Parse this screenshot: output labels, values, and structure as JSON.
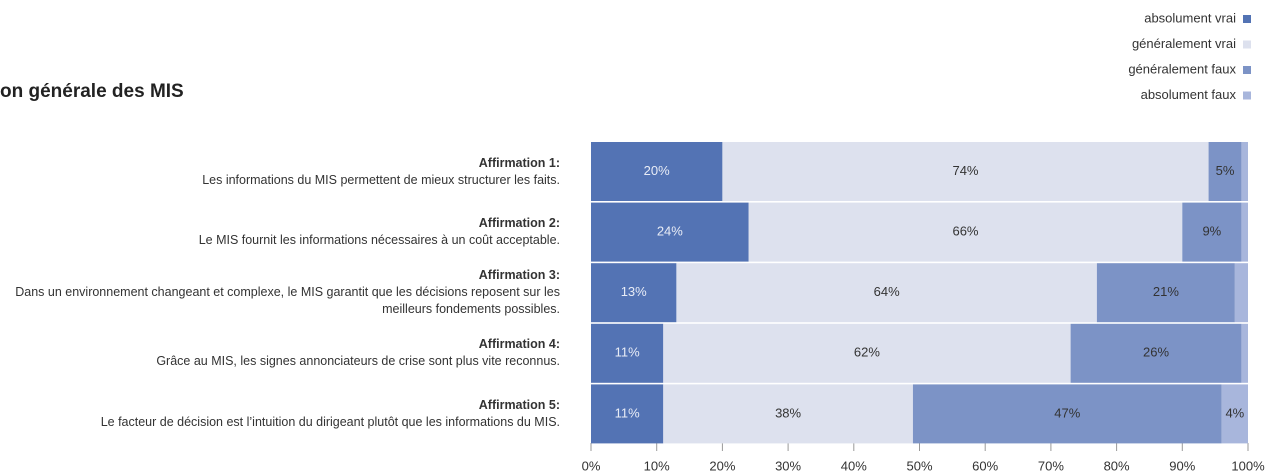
{
  "chart_data": {
    "type": "stacked_barh",
    "title": "on générale des MIS",
    "categories": [
      "Affirmation 1:",
      "Affirmation 2:",
      "Affirmation 3:",
      "Affirmation 4:",
      "Affirmation 5:"
    ],
    "descriptions": [
      "Les informations du MIS permettent de mieux structurer les faits.",
      "Le MIS fournit les informations nécessaires à un coût acceptable.",
      "Dans un environnement changeant et complexe, le MIS garantit que les décisions reposent sur les meilleurs fondements possibles.",
      "Grâce au MIS, les signes annonciateurs de crise sont plus vite reconnus.",
      "Le facteur de décision est l’intuition du dirigeant plutôt que les informations du MIS."
    ],
    "series": [
      {
        "name": "absolument vrai",
        "color": "#5373b4",
        "label_color": "#e8ecf6",
        "values": [
          20,
          24,
          13,
          11,
          11
        ],
        "value_labels": [
          "20%",
          "24%",
          "13%",
          "11%",
          "11%"
        ]
      },
      {
        "name": "généralement vrai",
        "color": "#dde1ee",
        "label_color": "#333333",
        "values": [
          74,
          66,
          64,
          62,
          38
        ],
        "value_labels": [
          "74%",
          "66%",
          "64%",
          "62%",
          "38%"
        ]
      },
      {
        "name": "généralement faux",
        "color": "#7c93c6",
        "label_color": "#333333",
        "values": [
          5,
          9,
          21,
          26,
          47
        ],
        "value_labels": [
          "5%",
          "9%",
          "21%",
          "26%",
          "47%"
        ]
      },
      {
        "name": "absolument faux",
        "color": "#a8b6dc",
        "label_color": "#333333",
        "values": [
          1,
          1,
          2,
          1,
          4
        ],
        "value_labels": [
          null,
          null,
          null,
          null,
          "4%"
        ]
      }
    ],
    "xlim": [
      0,
      100
    ],
    "xticks": [
      {
        "value": 0,
        "label": "0%"
      },
      {
        "value": 10,
        "label": "10%"
      },
      {
        "value": 20,
        "label": "20%"
      },
      {
        "value": 30,
        "label": "30%"
      },
      {
        "value": 40,
        "label": "40%"
      },
      {
        "value": 50,
        "label": "50%"
      },
      {
        "value": 60,
        "label": "60%"
      },
      {
        "value": 70,
        "label": "70%"
      },
      {
        "value": 80,
        "label": "80%"
      },
      {
        "value": 90,
        "label": "90%"
      },
      {
        "value": 100,
        "label": "100%"
      }
    ],
    "legend": "top-right"
  }
}
